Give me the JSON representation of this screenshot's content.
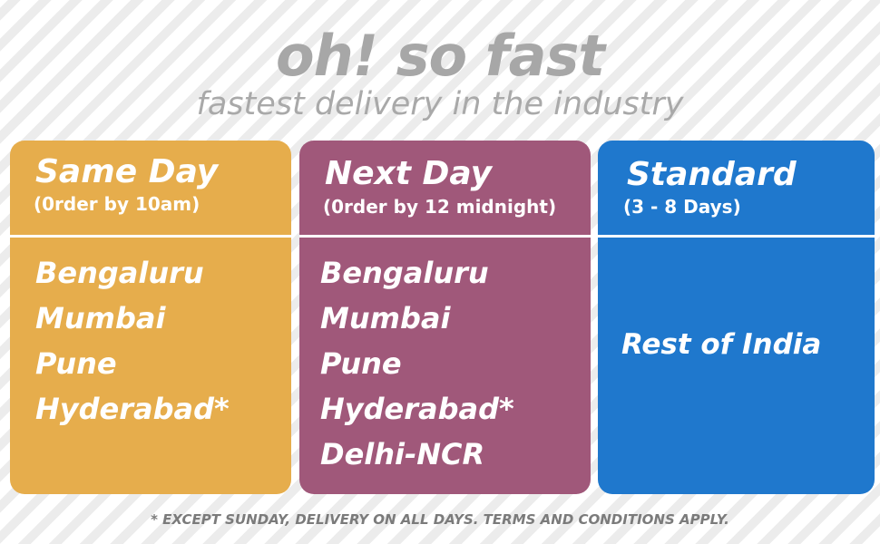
{
  "header": {
    "headline": "oh! so fast",
    "tagline": "fastest delivery in the industry"
  },
  "colors": {
    "same_day": "#e6ad4c",
    "next_day": "#a0587a",
    "standard": "#1f78cd",
    "text_gray": "#a7a7a7"
  },
  "cards": [
    {
      "title": "Same Day",
      "subtitle": "(0rder by 10am)",
      "cities": [
        "Bengaluru",
        "Mumbai",
        "Pune",
        "Hyderabad*"
      ]
    },
    {
      "title": "Next Day",
      "subtitle": "(0rder by 12 midnight)",
      "cities": [
        "Bengaluru",
        "Mumbai",
        "Pune",
        "Hyderabad*",
        "Delhi-NCR"
      ]
    },
    {
      "title": "Standard",
      "subtitle": "(3 - 8 Days)",
      "region": "Rest of India"
    }
  ],
  "footnote": "* EXCEPT SUNDAY, DELIVERY ON ALL DAYS. TERMS AND CONDITIONS APPLY."
}
